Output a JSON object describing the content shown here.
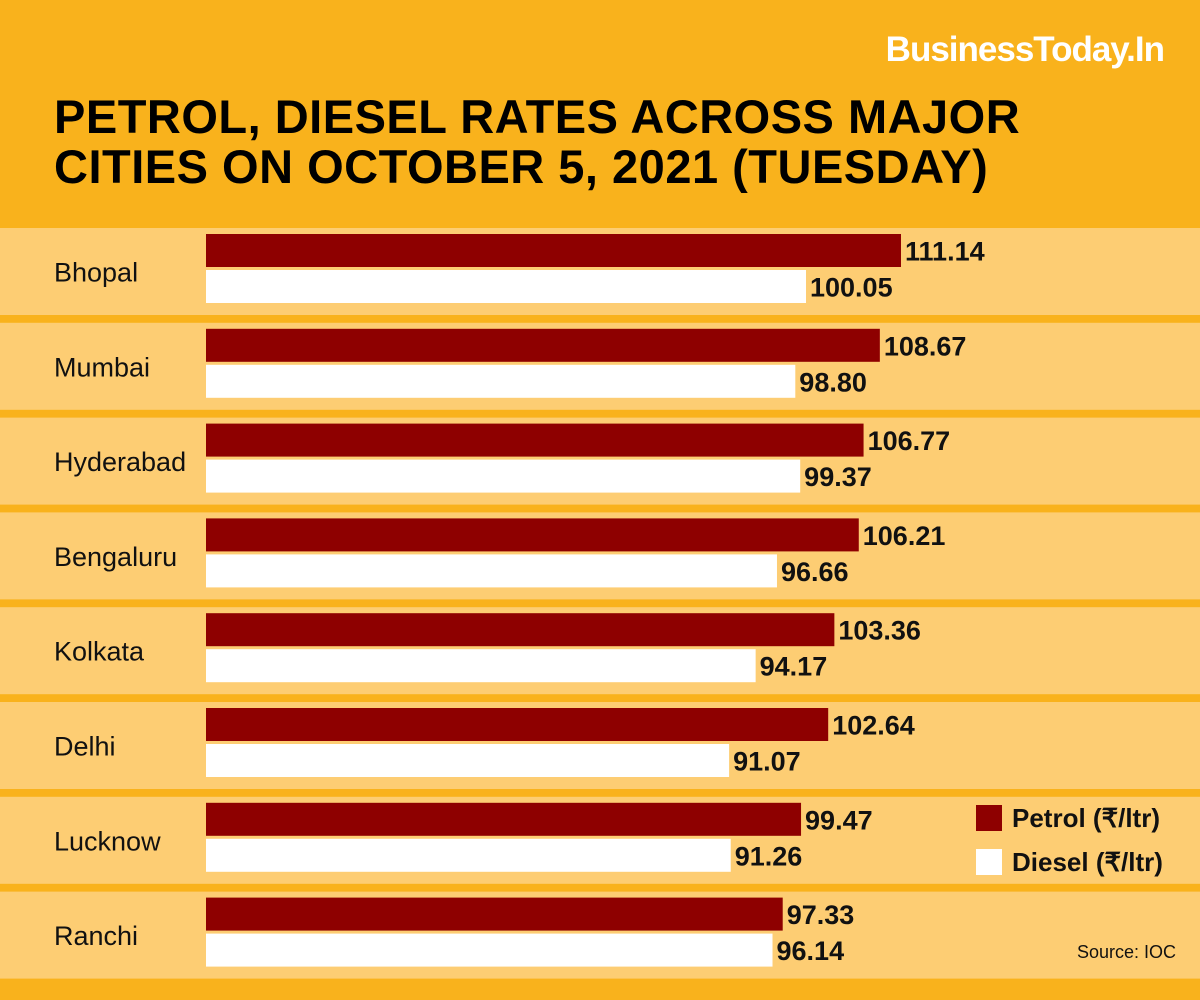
{
  "header": {
    "brand": "BusinessToday.In",
    "title_line1": "PETROL, DIESEL RATES ACROSS MAJOR",
    "title_line2": "CITIES ON OCTOBER 5, 2021 (TUESDAY)"
  },
  "colors": {
    "background": "#F9B21C",
    "band": "#FDCD73",
    "petrol": "#8E0000",
    "diesel": "#FFFFFF",
    "text": "#111111",
    "brand": "#FFFFFF"
  },
  "legend": {
    "petrol_label": "Petrol (₹/ltr)",
    "diesel_label": "Diesel (₹/ltr)"
  },
  "source": "Source: IOC",
  "chart_data": {
    "type": "bar",
    "orientation": "horizontal",
    "title": "PETROL, DIESEL RATES ACROSS MAJOR CITIES ON OCTOBER 5, 2021 (TUESDAY)",
    "categories": [
      "Bhopal",
      "Mumbai",
      "Hyderabad",
      "Bengaluru",
      "Kolkata",
      "Delhi",
      "Lucknow",
      "Ranchi"
    ],
    "series": [
      {
        "name": "Petrol (₹/ltr)",
        "values": [
          111.14,
          108.67,
          106.77,
          106.21,
          103.36,
          102.64,
          99.47,
          97.33
        ],
        "labels": [
          "111.14",
          "108.67",
          "106.77",
          "106.21",
          "103.36",
          "102.64",
          "99.47",
          "97.33"
        ]
      },
      {
        "name": "Diesel (₹/ltr)",
        "values": [
          100.05,
          98.8,
          99.37,
          96.66,
          94.17,
          91.07,
          91.26,
          96.14
        ],
        "labels": [
          "100.05",
          "98.80",
          "99.37",
          "96.66",
          "94.17",
          "91.07",
          "91.26",
          "96.14"
        ]
      }
    ],
    "legend_position": "bottom-right",
    "grid": false,
    "axes_visible": false
  }
}
